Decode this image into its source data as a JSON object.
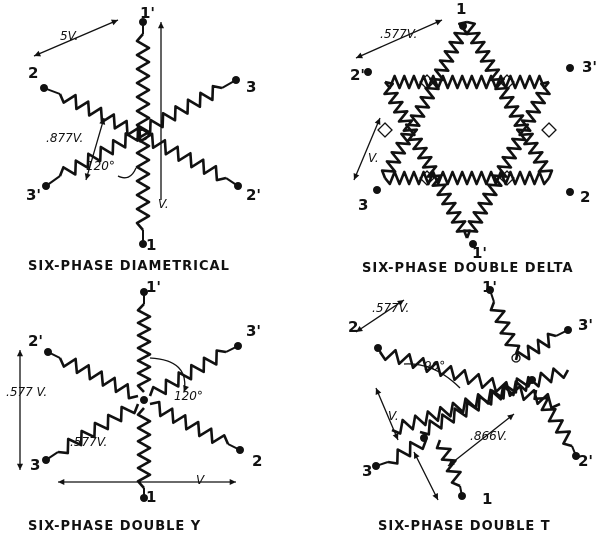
{
  "diagrams": [
    {
      "caption": "SIX-PHASE DIAMETRICAL",
      "labels": [
        "1'",
        "2",
        "3",
        "3'",
        "2'",
        "1"
      ],
      "values": [
        "5V.",
        ".877V.",
        "120°",
        "V."
      ]
    },
    {
      "caption": "SIX-PHASE DOUBLE DELTA",
      "labels": [
        "1",
        "2'",
        "3'",
        "3",
        "2",
        "1'"
      ],
      "values": [
        ".577V.",
        "V."
      ]
    },
    {
      "caption": "SIX-PHASE DOUBLE Y",
      "labels": [
        "1'",
        "2'",
        "3'",
        "3",
        "2",
        "1"
      ],
      "values": [
        ".577 V.",
        ".577V.",
        "120°",
        "V"
      ]
    },
    {
      "caption": "SIX-PHASE DOUBLE T",
      "labels": [
        "1'",
        "2",
        "3'",
        "3",
        "2'",
        "1"
      ],
      "values": [
        ".577V.",
        "90°",
        "V.",
        ".866V."
      ]
    }
  ],
  "colors": {
    "ink": "#111111",
    "paper": "#ffffff"
  }
}
